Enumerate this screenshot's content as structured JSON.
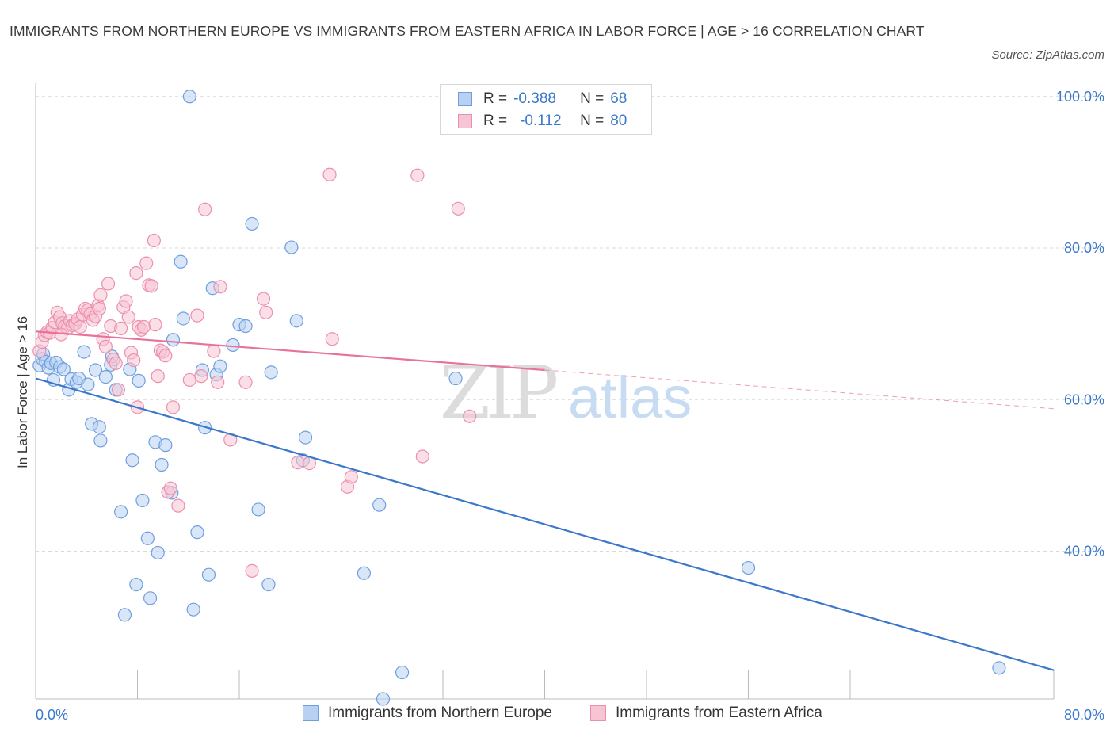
{
  "title": "IMMIGRANTS FROM NORTHERN EUROPE VS IMMIGRANTS FROM EASTERN AFRICA IN LABOR FORCE | AGE > 16 CORRELATION CHART",
  "source": "Source: ZipAtlas.com",
  "watermark": {
    "zip": "ZIP",
    "atlas": "atlas"
  },
  "legend": {
    "r_label": "R =",
    "n_label": "N =",
    "rows": [
      {
        "r": "-0.388",
        "n": "68"
      },
      {
        "r": "-0.112",
        "n": "80"
      }
    ]
  },
  "colors": {
    "blue_fill": "#b8d1f3",
    "blue_stroke": "#6f9fdf",
    "blue_line": "#3a78c9",
    "pink_fill": "#f7c4d4",
    "pink_stroke": "#ec8fae",
    "pink_line": "#e8729a",
    "axis_text": "#3a78c9",
    "grid": "#d9d9d9"
  },
  "chart_data": {
    "type": "scatter",
    "xlabel": "",
    "ylabel": "In Labor Force | Age > 16",
    "xlim": [
      0,
      80
    ],
    "ylim": [
      20.5,
      100.5
    ],
    "x_tick_labels": [
      "0.0%",
      "80.0%"
    ],
    "y_ticks": [
      40,
      60,
      80,
      100
    ],
    "y_tick_labels": [
      "40.0%",
      "60.0%",
      "80.0%",
      "100.0%"
    ],
    "grid": "horizontal dashed",
    "legend_position": "top-center",
    "series": [
      {
        "name": "Immigrants from Northern Europe",
        "color": "blue",
        "r": -0.388,
        "n": 68,
        "trend": {
          "x": [
            0,
            80
          ],
          "y": [
            62.8,
            24.3
          ],
          "dashed_from_x": null
        },
        "points": [
          [
            0.3,
            64.5
          ],
          [
            0.5,
            65.4
          ],
          [
            0.6,
            66.0
          ],
          [
            0.8,
            65.0
          ],
          [
            1.0,
            64.2
          ],
          [
            1.2,
            64.8
          ],
          [
            1.4,
            62.6
          ],
          [
            1.6,
            64.9
          ],
          [
            1.9,
            64.3
          ],
          [
            2.2,
            64.0
          ],
          [
            2.6,
            61.3
          ],
          [
            2.8,
            62.7
          ],
          [
            3.2,
            62.3
          ],
          [
            3.4,
            62.8
          ],
          [
            3.8,
            66.3
          ],
          [
            4.1,
            62.0
          ],
          [
            4.4,
            56.8
          ],
          [
            4.7,
            63.9
          ],
          [
            5.0,
            56.4
          ],
          [
            5.1,
            54.6
          ],
          [
            5.5,
            63.0
          ],
          [
            5.9,
            64.6
          ],
          [
            6.0,
            65.7
          ],
          [
            6.3,
            61.3
          ],
          [
            6.7,
            45.2
          ],
          [
            7.0,
            31.6
          ],
          [
            7.4,
            64.0
          ],
          [
            7.6,
            52.0
          ],
          [
            7.9,
            35.6
          ],
          [
            8.1,
            62.5
          ],
          [
            8.4,
            46.7
          ],
          [
            8.8,
            41.7
          ],
          [
            9.0,
            33.8
          ],
          [
            9.4,
            54.4
          ],
          [
            9.6,
            39.8
          ],
          [
            9.9,
            51.4
          ],
          [
            10.2,
            54.0
          ],
          [
            10.7,
            47.7
          ],
          [
            10.8,
            67.9
          ],
          [
            11.4,
            78.2
          ],
          [
            11.6,
            70.7
          ],
          [
            12.1,
            100.0
          ],
          [
            12.4,
            32.3
          ],
          [
            12.7,
            42.5
          ],
          [
            13.1,
            63.9
          ],
          [
            13.3,
            56.3
          ],
          [
            13.6,
            36.9
          ],
          [
            13.9,
            74.7
          ],
          [
            14.2,
            63.3
          ],
          [
            14.5,
            64.4
          ],
          [
            15.5,
            67.2
          ],
          [
            16.0,
            69.9
          ],
          [
            16.5,
            69.7
          ],
          [
            17.0,
            83.2
          ],
          [
            17.5,
            45.5
          ],
          [
            18.3,
            35.6
          ],
          [
            18.5,
            63.6
          ],
          [
            20.1,
            80.1
          ],
          [
            20.5,
            70.4
          ],
          [
            21.0,
            52.0
          ],
          [
            21.2,
            55.0
          ],
          [
            25.8,
            37.1
          ],
          [
            27.0,
            46.1
          ],
          [
            27.3,
            20.5
          ],
          [
            28.8,
            24.0
          ],
          [
            33.0,
            62.8
          ],
          [
            56.0,
            37.8
          ],
          [
            75.7,
            24.6
          ]
        ]
      },
      {
        "name": "Immigrants from Eastern Africa",
        "color": "pink",
        "r": -0.112,
        "n": 80,
        "trend": {
          "x": [
            0,
            80
          ],
          "y": [
            69.0,
            58.8
          ],
          "dashed_from_x": 40
        },
        "points": [
          [
            0.3,
            66.4
          ],
          [
            0.5,
            67.6
          ],
          [
            0.7,
            68.5
          ],
          [
            0.9,
            68.9
          ],
          [
            1.1,
            68.8
          ],
          [
            1.3,
            69.5
          ],
          [
            1.5,
            70.2
          ],
          [
            1.7,
            71.5
          ],
          [
            1.9,
            70.9
          ],
          [
            2.1,
            70.1
          ],
          [
            2.3,
            69.7
          ],
          [
            2.5,
            69.4
          ],
          [
            2.7,
            70.4
          ],
          [
            2.9,
            69.8
          ],
          [
            3.1,
            70.0
          ],
          [
            3.3,
            70.6
          ],
          [
            3.5,
            69.6
          ],
          [
            3.7,
            71.2
          ],
          [
            3.9,
            72.0
          ],
          [
            4.1,
            71.8
          ],
          [
            4.3,
            71.3
          ],
          [
            4.5,
            70.5
          ],
          [
            4.7,
            71.0
          ],
          [
            4.9,
            72.4
          ],
          [
            5.1,
            73.8
          ],
          [
            5.3,
            68.0
          ],
          [
            5.5,
            67.0
          ],
          [
            5.7,
            75.3
          ],
          [
            5.9,
            69.7
          ],
          [
            6.1,
            65.3
          ],
          [
            6.3,
            64.8
          ],
          [
            6.5,
            61.3
          ],
          [
            6.7,
            69.4
          ],
          [
            6.9,
            72.2
          ],
          [
            7.1,
            73.0
          ],
          [
            7.3,
            70.9
          ],
          [
            7.5,
            66.2
          ],
          [
            7.7,
            65.2
          ],
          [
            7.9,
            76.7
          ],
          [
            8.1,
            69.6
          ],
          [
            8.3,
            69.2
          ],
          [
            8.5,
            69.6
          ],
          [
            8.7,
            78.0
          ],
          [
            8.9,
            75.1
          ],
          [
            9.1,
            75.0
          ],
          [
            9.3,
            81.0
          ],
          [
            9.6,
            63.1
          ],
          [
            9.8,
            66.5
          ],
          [
            10.0,
            66.3
          ],
          [
            10.2,
            65.8
          ],
          [
            10.4,
            47.8
          ],
          [
            10.6,
            48.3
          ],
          [
            10.8,
            59.0
          ],
          [
            11.2,
            46.0
          ],
          [
            12.1,
            62.6
          ],
          [
            12.7,
            71.1
          ],
          [
            13.0,
            63.1
          ],
          [
            13.3,
            85.1
          ],
          [
            14.0,
            66.4
          ],
          [
            14.3,
            62.3
          ],
          [
            14.5,
            74.9
          ],
          [
            15.3,
            54.7
          ],
          [
            16.5,
            62.3
          ],
          [
            17.0,
            37.4
          ],
          [
            17.9,
            73.3
          ],
          [
            18.1,
            71.5
          ],
          [
            20.6,
            51.7
          ],
          [
            21.5,
            51.6
          ],
          [
            23.1,
            89.7
          ],
          [
            23.3,
            68.0
          ],
          [
            24.5,
            48.5
          ],
          [
            24.8,
            49.8
          ],
          [
            30.0,
            89.6
          ],
          [
            30.4,
            52.5
          ],
          [
            33.2,
            85.2
          ],
          [
            34.1,
            57.8
          ],
          [
            9.4,
            69.9
          ],
          [
            5.0,
            72.0
          ],
          [
            2.0,
            68.6
          ],
          [
            8.0,
            59.0
          ]
        ]
      }
    ]
  },
  "bottom_legend": {
    "items": [
      {
        "label": "Immigrants from Northern Europe"
      },
      {
        "label": "Immigrants from Eastern Africa"
      }
    ]
  }
}
